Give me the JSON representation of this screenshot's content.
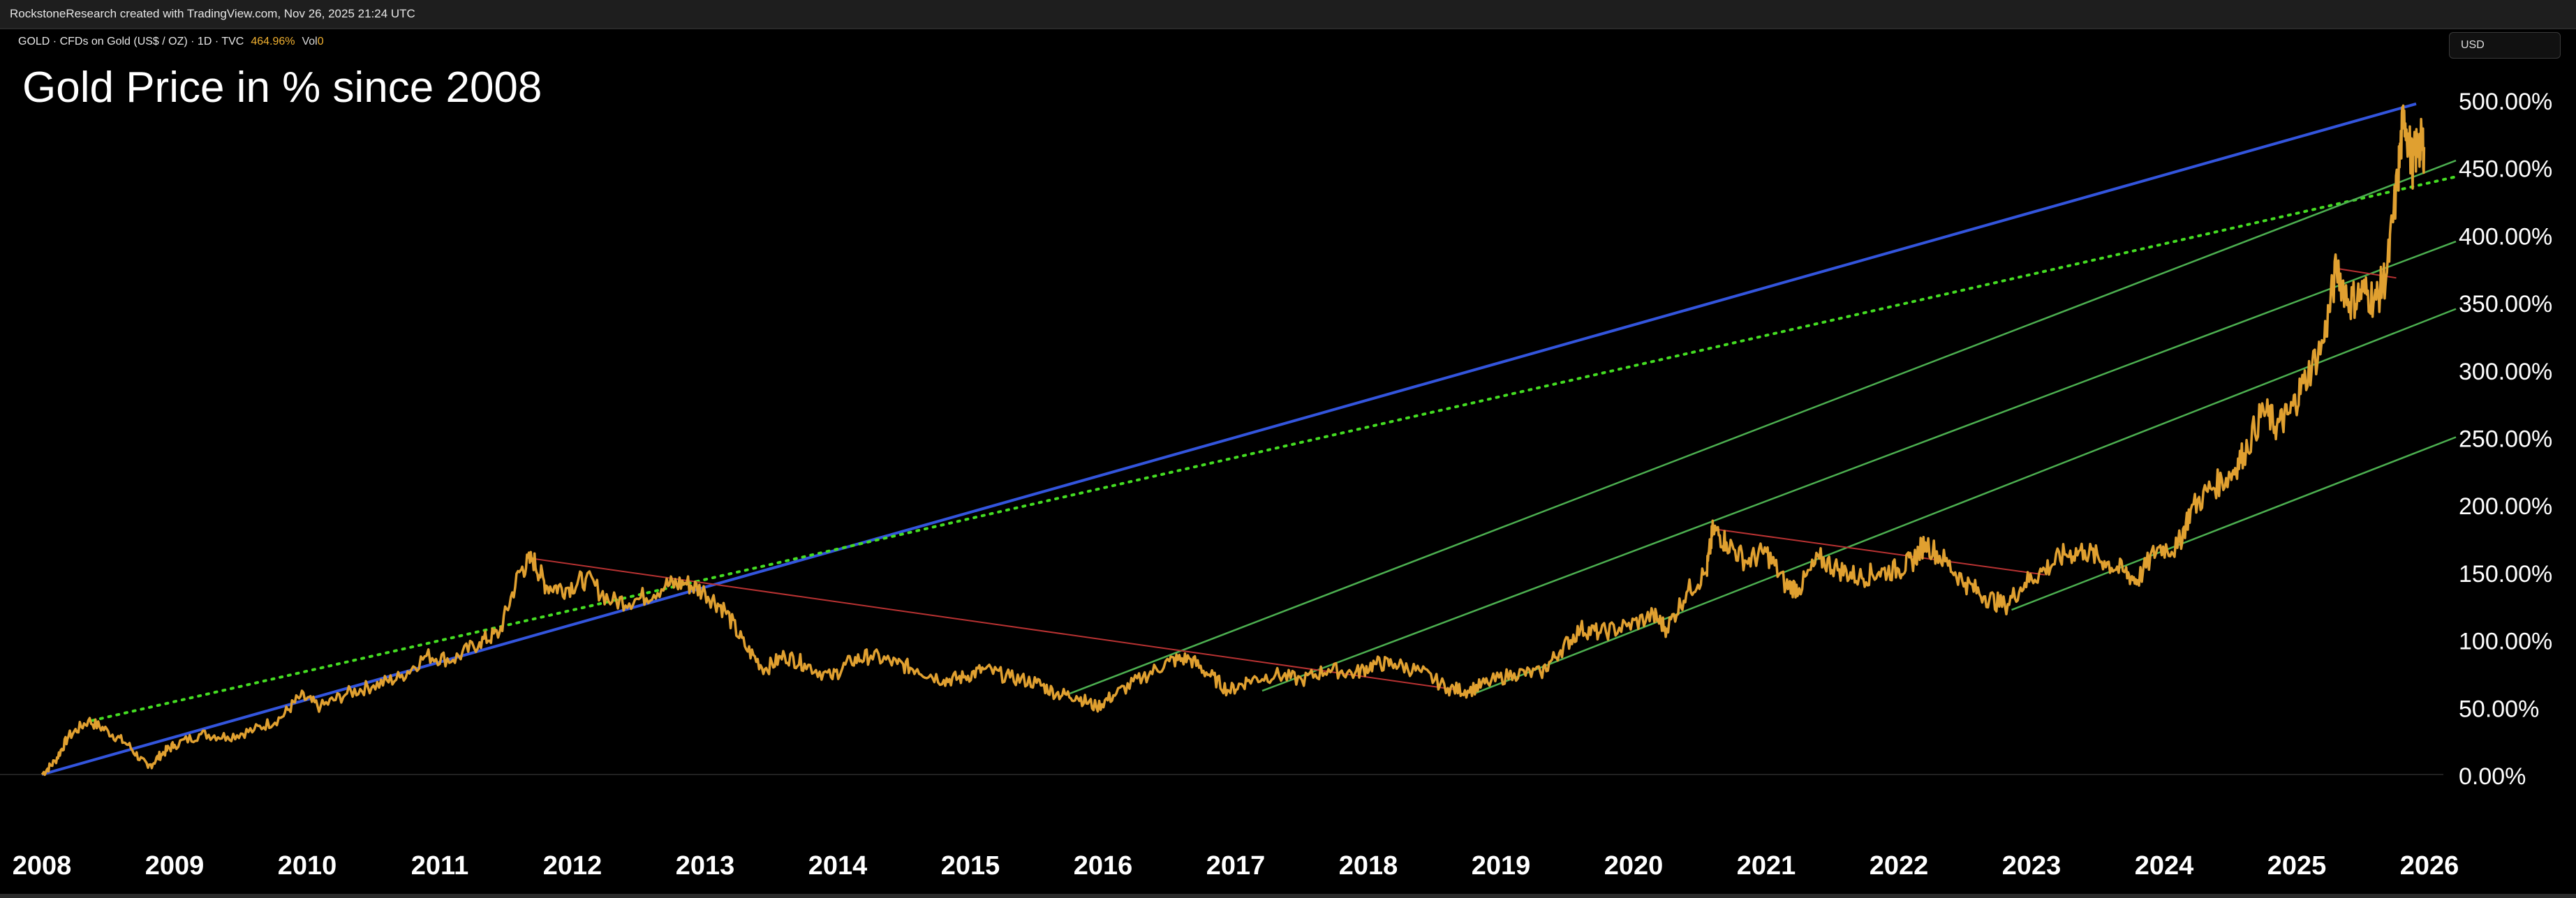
{
  "header": {
    "attribution": "RockstoneResearch created with TradingView.com, Nov 26, 2025 21:24 UTC",
    "symbol_line": "GOLD · CFDs on Gold (US$ / OZ) · 1D · TVC",
    "last_value": "464.96%",
    "volume_label": "Vol",
    "volume_value": "0",
    "currency_button": "USD"
  },
  "colors": {
    "price": "#E0A030",
    "blue_trend": "#3355DD",
    "green_channel": "#4CAF50",
    "green_dotted": "#44DD22",
    "red_lines": "#B83232",
    "background": "#000000",
    "axis_text": "#FFFFFF"
  },
  "chart_data": {
    "type": "line",
    "title": "Gold Price in % since 2008",
    "xlabel": "",
    "ylabel": "",
    "x_ticks": [
      "2008",
      "2009",
      "2010",
      "2011",
      "2012",
      "2013",
      "2014",
      "2015",
      "2016",
      "2017",
      "2018",
      "2019",
      "2020",
      "2021",
      "2022",
      "2023",
      "2024",
      "2025",
      "2026"
    ],
    "y_ticks": [
      "0.00%",
      "50.00%",
      "100.00%",
      "150.00%",
      "200.00%",
      "250.00%",
      "300.00%",
      "350.00%",
      "400.00%",
      "450.00%",
      "500.00%"
    ],
    "ylim": [
      0,
      500
    ],
    "xlim": [
      2008.0,
      2026.2
    ],
    "grid": false,
    "series": [
      {
        "values": [
          [
            2008.0,
            0
          ],
          [
            2008.1,
            10
          ],
          [
            2008.2,
            28
          ],
          [
            2008.35,
            40
          ],
          [
            2008.5,
            32
          ],
          [
            2008.65,
            22
          ],
          [
            2008.8,
            5
          ],
          [
            2008.9,
            15
          ],
          [
            2009.0,
            22
          ],
          [
            2009.2,
            30
          ],
          [
            2009.4,
            28
          ],
          [
            2009.6,
            33
          ],
          [
            2009.8,
            42
          ],
          [
            2009.95,
            58
          ],
          [
            2010.1,
            50
          ],
          [
            2010.3,
            60
          ],
          [
            2010.5,
            66
          ],
          [
            2010.7,
            72
          ],
          [
            2010.9,
            88
          ],
          [
            2011.1,
            85
          ],
          [
            2011.3,
            98
          ],
          [
            2011.45,
            105
          ],
          [
            2011.6,
            150
          ],
          [
            2011.7,
            160
          ],
          [
            2011.8,
            140
          ],
          [
            2011.95,
            138
          ],
          [
            2012.1,
            145
          ],
          [
            2012.3,
            128
          ],
          [
            2012.5,
            130
          ],
          [
            2012.7,
            140
          ],
          [
            2012.85,
            142
          ],
          [
            2013.0,
            135
          ],
          [
            2013.15,
            122
          ],
          [
            2013.3,
            95
          ],
          [
            2013.45,
            78
          ],
          [
            2013.6,
            88
          ],
          [
            2013.75,
            82
          ],
          [
            2013.95,
            72
          ],
          [
            2014.1,
            84
          ],
          [
            2014.25,
            88
          ],
          [
            2014.45,
            82
          ],
          [
            2014.6,
            78
          ],
          [
            2014.8,
            70
          ],
          [
            2014.95,
            72
          ],
          [
            2015.1,
            78
          ],
          [
            2015.3,
            72
          ],
          [
            2015.5,
            68
          ],
          [
            2015.65,
            60
          ],
          [
            2015.8,
            58
          ],
          [
            2015.95,
            50
          ],
          [
            2016.1,
            60
          ],
          [
            2016.3,
            72
          ],
          [
            2016.5,
            84
          ],
          [
            2016.65,
            86
          ],
          [
            2016.8,
            74
          ],
          [
            2016.95,
            62
          ],
          [
            2017.1,
            70
          ],
          [
            2017.3,
            74
          ],
          [
            2017.5,
            70
          ],
          [
            2017.7,
            78
          ],
          [
            2017.9,
            75
          ],
          [
            2018.05,
            82
          ],
          [
            2018.2,
            82
          ],
          [
            2018.4,
            76
          ],
          [
            2018.6,
            64
          ],
          [
            2018.75,
            62
          ],
          [
            2018.9,
            68
          ],
          [
            2019.1,
            75
          ],
          [
            2019.3,
            75
          ],
          [
            2019.45,
            92
          ],
          [
            2019.6,
            108
          ],
          [
            2019.75,
            105
          ],
          [
            2019.95,
            110
          ],
          [
            2020.15,
            118
          ],
          [
            2020.25,
            108
          ],
          [
            2020.4,
            135
          ],
          [
            2020.55,
            150
          ],
          [
            2020.6,
            182
          ],
          [
            2020.7,
            172
          ],
          [
            2020.85,
            158
          ],
          [
            2021.0,
            165
          ],
          [
            2021.15,
            140
          ],
          [
            2021.25,
            138
          ],
          [
            2021.4,
            160
          ],
          [
            2021.55,
            152
          ],
          [
            2021.7,
            146
          ],
          [
            2021.85,
            150
          ],
          [
            2022.0,
            152
          ],
          [
            2022.1,
            158
          ],
          [
            2022.2,
            172
          ],
          [
            2022.35,
            158
          ],
          [
            2022.5,
            142
          ],
          [
            2022.65,
            132
          ],
          [
            2022.8,
            125
          ],
          [
            2022.95,
            142
          ],
          [
            2023.1,
            152
          ],
          [
            2023.25,
            163
          ],
          [
            2023.4,
            166
          ],
          [
            2023.55,
            158
          ],
          [
            2023.7,
            150
          ],
          [
            2023.8,
            144
          ],
          [
            2023.95,
            168
          ],
          [
            2024.1,
            168
          ],
          [
            2024.2,
            196
          ],
          [
            2024.35,
            212
          ],
          [
            2024.5,
            222
          ],
          [
            2024.6,
            238
          ],
          [
            2024.75,
            270
          ],
          [
            2024.85,
            258
          ],
          [
            2024.95,
            268
          ],
          [
            2025.05,
            290
          ],
          [
            2025.2,
            320
          ],
          [
            2025.3,
            375
          ],
          [
            2025.4,
            350
          ],
          [
            2025.5,
            358
          ],
          [
            2025.6,
            352
          ],
          [
            2025.68,
            372
          ],
          [
            2025.76,
            440
          ],
          [
            2025.81,
            492
          ],
          [
            2025.87,
            452
          ],
          [
            2025.92,
            468
          ],
          [
            2025.96,
            465
          ]
        ]
      }
    ],
    "annotations": [
      {
        "type": "trendline",
        "style": "solid",
        "color": "blue_trend",
        "points": [
          [
            2008.0,
            0
          ],
          [
            2025.9,
            497
          ]
        ]
      },
      {
        "type": "trendline",
        "style": "dotted",
        "color": "green_dotted",
        "points": [
          [
            2008.38,
            40
          ],
          [
            2026.2,
            443
          ]
        ]
      },
      {
        "type": "trendline",
        "style": "solid",
        "color": "green_channel",
        "points": [
          [
            2015.75,
            60
          ],
          [
            2026.2,
            455
          ]
        ]
      },
      {
        "type": "trendline",
        "style": "solid",
        "color": "green_channel",
        "points": [
          [
            2017.2,
            62
          ],
          [
            2026.2,
            395
          ]
        ]
      },
      {
        "type": "trendline",
        "style": "solid",
        "color": "green_channel",
        "points": [
          [
            2018.8,
            60
          ],
          [
            2026.2,
            345
          ]
        ]
      },
      {
        "type": "trendline",
        "style": "solid",
        "color": "green_channel",
        "points": [
          [
            2022.85,
            122
          ],
          [
            2026.2,
            250
          ]
        ]
      },
      {
        "type": "trendline",
        "style": "solid",
        "color": "red_lines",
        "points": [
          [
            2011.7,
            160
          ],
          [
            2018.65,
            63
          ]
        ]
      },
      {
        "type": "trendline",
        "style": "solid",
        "color": "red_lines",
        "points": [
          [
            2020.6,
            182
          ],
          [
            2023.1,
            148
          ]
        ]
      },
      {
        "type": "trendline",
        "style": "solid",
        "color": "red_lines",
        "points": [
          [
            2025.3,
            375
          ],
          [
            2025.75,
            368
          ]
        ]
      }
    ]
  }
}
